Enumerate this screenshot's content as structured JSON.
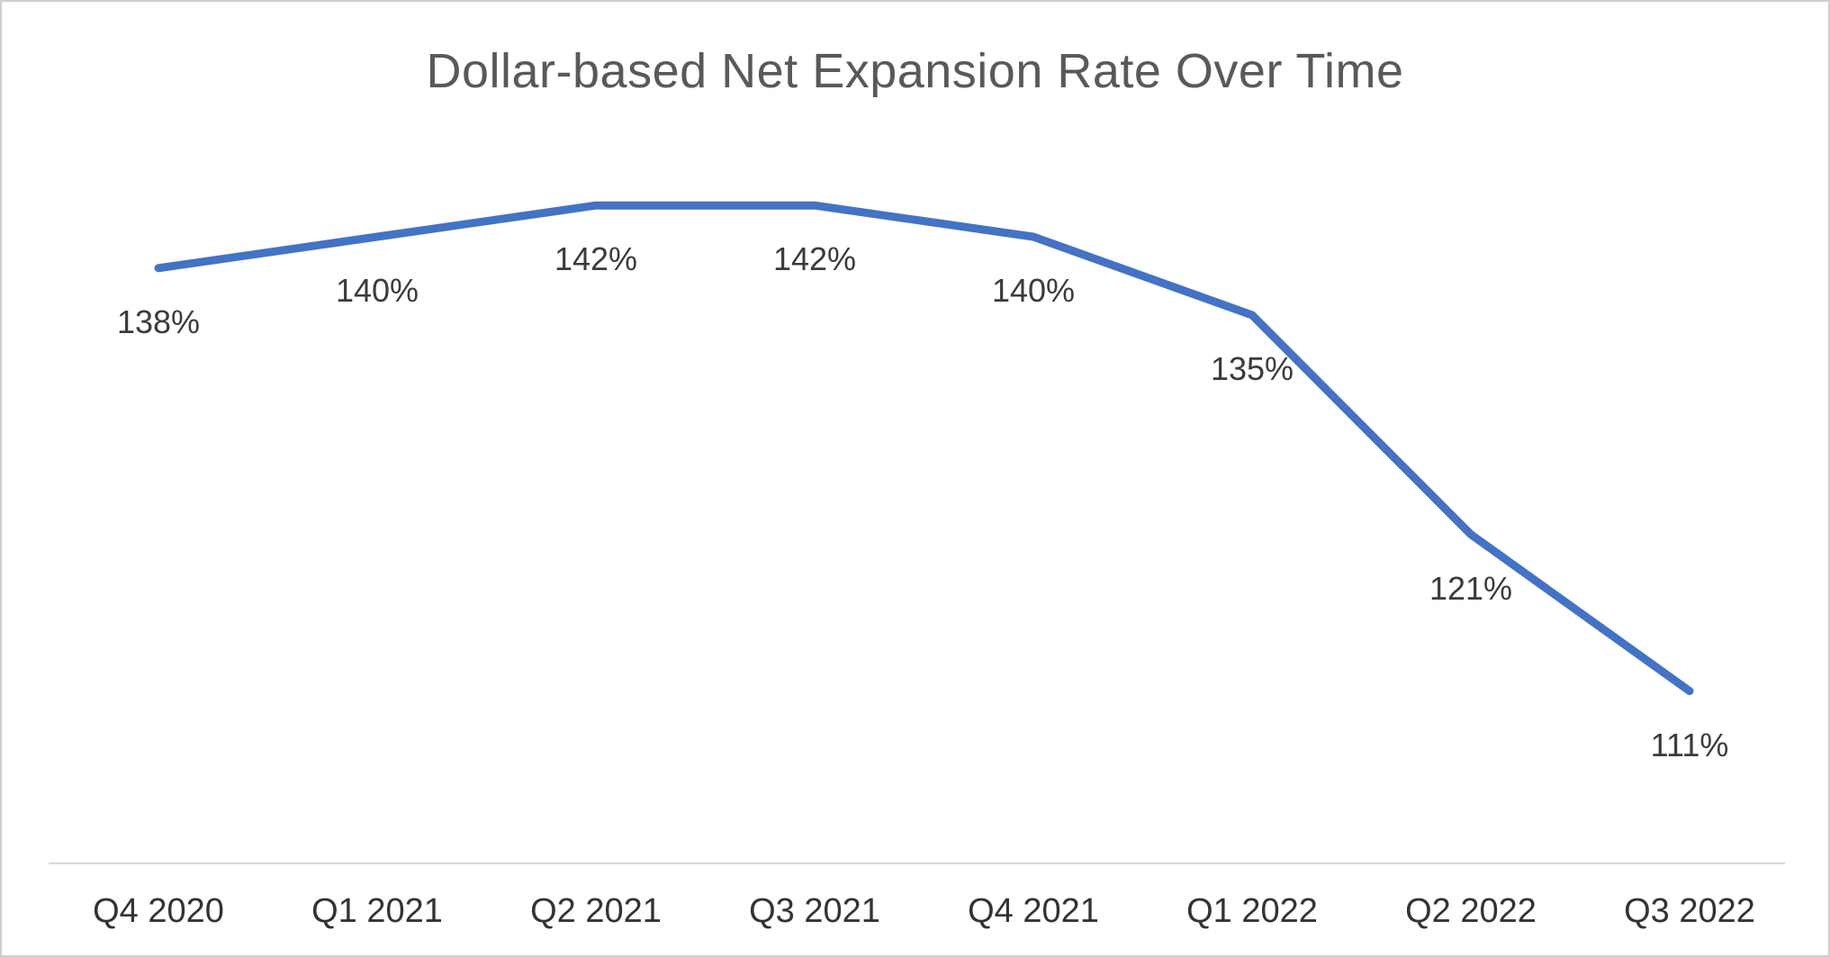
{
  "chart_data": {
    "type": "line",
    "title": "Dollar-based Net Expansion Rate Over Time",
    "categories": [
      "Q4 2020",
      "Q1 2021",
      "Q2 2021",
      "Q3 2021",
      "Q4 2021",
      "Q1 2022",
      "Q2 2022",
      "Q3 2022"
    ],
    "values": [
      138,
      140,
      142,
      142,
      140,
      135,
      121,
      111
    ],
    "data_labels": [
      "138%",
      "140%",
      "142%",
      "142%",
      "140%",
      "135%",
      "121%",
      "111%"
    ],
    "xlabel": "",
    "ylabel": "",
    "ylim": [
      100,
      145
    ],
    "grid": false,
    "legend": false,
    "colors": {
      "line": "#4472C4",
      "title": "#595959",
      "data_label": "#3b3b3b",
      "axis_label": "#333333",
      "axis_line": "#d9d9d9",
      "frame_border": "#cfcfcf",
      "background": "#ffffff"
    }
  }
}
